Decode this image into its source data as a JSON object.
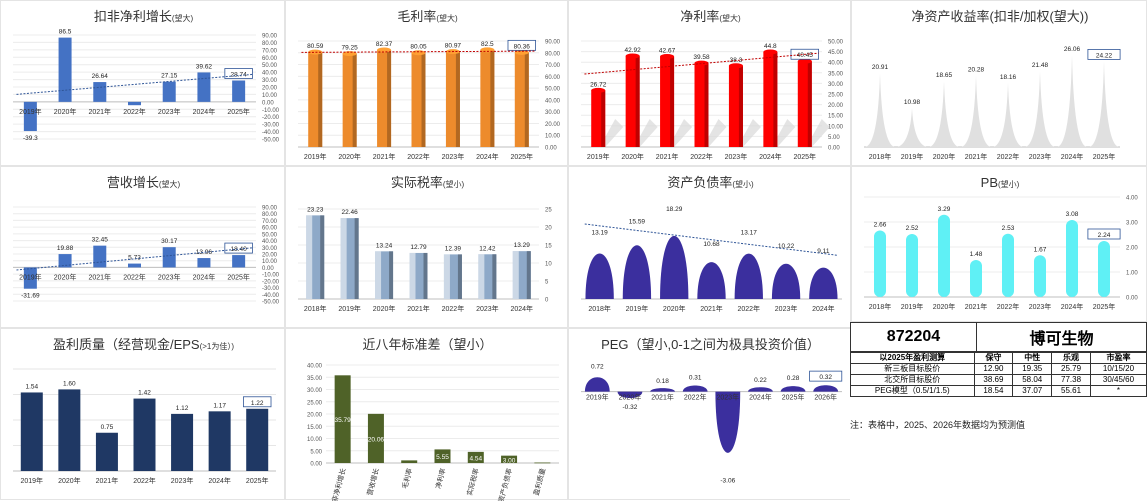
{
  "chart_data": [
    {
      "id": "c1",
      "type": "bar",
      "title": "扣非净利增长",
      "subtitle": "(望大)",
      "categories": [
        "2019年",
        "2020年",
        "2021年",
        "2022年",
        "2023年",
        "2024年",
        "2025年"
      ],
      "values": [
        -39.3,
        86.5,
        26.64,
        -4.5,
        27.15,
        39.62,
        28.74
      ],
      "labels": [
        "-39.3",
        "86.5",
        "26.64",
        "",
        "27.15",
        "39.62",
        "28.74"
      ],
      "ylim": [
        -50,
        90
      ],
      "yticks": [
        "90.00",
        "80.00",
        "70.00",
        "60.00",
        "50.00",
        "40.00",
        "30.00",
        "20.00",
        "10.00",
        "0.00",
        "-10.00",
        "-20.00",
        "-30.00",
        "-40.00",
        "-50.00"
      ],
      "color": "#4472c4"
    },
    {
      "id": "c2",
      "type": "bar",
      "title": "毛利率",
      "subtitle": "(望大)",
      "categories": [
        "2019年",
        "2020年",
        "2021年",
        "2022年",
        "2023年",
        "2024年",
        "2025年"
      ],
      "values": [
        80.59,
        79.25,
        82.37,
        80.05,
        80.97,
        82.5,
        80.36
      ],
      "labels": [
        "80.59",
        "79.25",
        "82.37",
        "80.05",
        "80.97",
        "82.5",
        "80.36"
      ],
      "ylim": [
        0,
        90
      ],
      "yticks": [
        "90.00",
        "80.00",
        "70.00",
        "60.00",
        "50.00",
        "40.00",
        "30.00",
        "20.00",
        "10.00",
        "0.00"
      ],
      "color": "#ed8b2c"
    },
    {
      "id": "c3",
      "type": "bar",
      "title": "净利率",
      "subtitle": "(望大)",
      "categories": [
        "2019年",
        "2020年",
        "2021年",
        "2022年",
        "2023年",
        "2024年",
        "2025年"
      ],
      "values": [
        26.72,
        42.92,
        42.67,
        39.58,
        38.3,
        44.8,
        40.45
      ],
      "labels": [
        "26.72",
        "42.92",
        "42.67",
        "39.58",
        "38.3",
        "44.8",
        "40.45"
      ],
      "ylim": [
        0,
        50
      ],
      "yticks": [
        "50.00",
        "45.00",
        "40.00",
        "35.00",
        "30.00",
        "25.00",
        "20.00",
        "15.00",
        "10.00",
        "5.00",
        "0.00"
      ],
      "color": "#ff0000"
    },
    {
      "id": "c4",
      "type": "area",
      "title": "净资产收益率(扣非/加权(望大))",
      "subtitle": "",
      "categories": [
        "2018年",
        "2019年",
        "2020年",
        "2021年",
        "2022年",
        "2023年",
        "2024年",
        "2025年"
      ],
      "values": [
        20.91,
        10.98,
        18.65,
        20.28,
        18.16,
        21.48,
        26.06,
        24.22
      ],
      "labels": [
        "20.91",
        "10.98",
        "18.65",
        "20.28",
        "18.16",
        "21.48",
        "26.06",
        "24.22"
      ],
      "ylim": [
        0,
        30
      ],
      "color": "#e0e0e0"
    },
    {
      "id": "c5",
      "type": "bar",
      "title": "营收增长",
      "subtitle": "(望大)",
      "categories": [
        "2019年",
        "2020年",
        "2021年",
        "2022年",
        "2023年",
        "2024年",
        "2025年"
      ],
      "values": [
        -31.69,
        19.88,
        32.45,
        5.73,
        30.17,
        13.96,
        18.4
      ],
      "labels": [
        "-31.69",
        "19.88",
        "32.45",
        "5.73",
        "30.17",
        "13.96",
        "18.40"
      ],
      "ylim": [
        -50,
        90
      ],
      "yticks": [
        "90.00",
        "80.00",
        "70.00",
        "60.00",
        "50.00",
        "40.00",
        "30.00",
        "20.00",
        "10.00",
        "0.00",
        "-10.00",
        "-20.00",
        "-30.00",
        "-40.00",
        "-50.00"
      ],
      "color": "#4472c4"
    },
    {
      "id": "c6",
      "type": "bar",
      "title": "实际税率",
      "subtitle": "(望小)",
      "categories": [
        "2018年",
        "2019年",
        "2020年",
        "2021年",
        "2022年",
        "2023年",
        "2024年"
      ],
      "values": [
        23.23,
        22.46,
        13.24,
        12.79,
        12.39,
        12.42,
        13.29
      ],
      "labels": [
        "23.23",
        "22.46",
        "13.24",
        "12.79",
        "12.39",
        "12.42",
        "13.29"
      ],
      "ylim": [
        0,
        25
      ],
      "yticks": [
        "25",
        "20",
        "15",
        "10",
        "5",
        "0"
      ],
      "color": "#8ea9c8"
    },
    {
      "id": "c7",
      "type": "area",
      "title": "资产负债率",
      "subtitle": "(望小)",
      "categories": [
        "2018年",
        "2019年",
        "2020年",
        "2021年",
        "2022年",
        "2023年",
        "2024年"
      ],
      "values": [
        13.19,
        15.59,
        18.29,
        10.68,
        13.17,
        10.22,
        9.11
      ],
      "labels": [
        "13.19",
        "15.59",
        "18.29",
        "10.68",
        "13.17",
        "10.22",
        "9.11"
      ],
      "ylim": [
        0,
        20
      ],
      "color": "#3b2f9e"
    },
    {
      "id": "c8",
      "type": "bar",
      "title": "PB",
      "subtitle": "(望小)",
      "categories": [
        "2018年",
        "2019年",
        "2020年",
        "2021年",
        "2022年",
        "2023年",
        "2024年",
        "2025年"
      ],
      "values": [
        2.66,
        2.52,
        3.29,
        1.48,
        2.53,
        1.67,
        3.08,
        2.24
      ],
      "labels": [
        "2.66",
        "2.52",
        "3.29",
        "1.48",
        "2.53",
        "1.67",
        "3.08",
        "2.24"
      ],
      "ylim": [
        0,
        4
      ],
      "yticks": [
        "4.00",
        "3.00",
        "2.00",
        "1.00",
        "0.00"
      ],
      "color": "#5ff0f5"
    },
    {
      "id": "c9",
      "type": "bar",
      "title": "盈利质量（经营现金/EPS",
      "subtitle": "(>1为佳）)",
      "categories": [
        "2019年",
        "2020年",
        "2021年",
        "2022年",
        "2023年",
        "2024年",
        "2025年"
      ],
      "values": [
        1.54,
        1.6,
        0.75,
        1.42,
        1.12,
        1.17,
        1.22
      ],
      "labels": [
        "1.54",
        "1.60",
        "0.75",
        "1.42",
        "1.12",
        "1.17",
        "1.22"
      ],
      "ylim": [
        0,
        2
      ],
      "color": "#1f3864"
    },
    {
      "id": "c10",
      "type": "bar",
      "title": "近八年标准差（望小）",
      "subtitle": "",
      "categories": [
        "扣非净利增长",
        "营收增长",
        "毛利率",
        "净利率",
        "实际税率",
        "资产负债率",
        "盈利质量"
      ],
      "values": [
        35.79,
        20.06,
        1.07,
        5.55,
        4.54,
        3.0,
        0.2
      ],
      "labels": [
        "35.79",
        "20.06",
        "",
        "5.55",
        "4.54",
        "3.00",
        ""
      ],
      "ylim": [
        0,
        40
      ],
      "yticks": [
        "40.00",
        "35.00",
        "30.00",
        "25.00",
        "20.00",
        "15.00",
        "10.00",
        "5.00",
        "0.00"
      ],
      "color": "#4f6228"
    },
    {
      "id": "c11",
      "type": "area",
      "title": "PEG（望小,0-1之间为极具投资价值）",
      "subtitle": "",
      "categories": [
        "2019年",
        "2020年",
        "2021年",
        "2022年",
        "2023年",
        "2024年",
        "2025年",
        "2026年"
      ],
      "values": [
        0.72,
        -0.32,
        0.18,
        0.31,
        -3.06,
        0.22,
        0.28,
        0.32
      ],
      "labels": [
        "0.72",
        "-0.32",
        "0.18",
        "0.31",
        "-3.06",
        "0.22",
        "0.28",
        "0.32"
      ],
      "ylim": [
        -3.2,
        1
      ],
      "color": "#3b2f9e"
    }
  ],
  "stock": {
    "code": "872204",
    "name": "博可生物"
  },
  "valuation": {
    "headers": [
      "以2025年盈利测算",
      "保守",
      "中性",
      "乐观",
      "市盈率"
    ],
    "rows": [
      [
        "新三板目标股价",
        "12.90",
        "19.35",
        "25.79",
        "10/15/20"
      ],
      [
        "北交所目标股价",
        "38.69",
        "58.04",
        "77.38",
        "30/45/60"
      ],
      [
        "PEG模型（0.5/1/1.5)",
        "18.54",
        "37.07",
        "55.61",
        "*"
      ]
    ]
  },
  "note": "注：表格中，2025、2026年数据均为预测值"
}
